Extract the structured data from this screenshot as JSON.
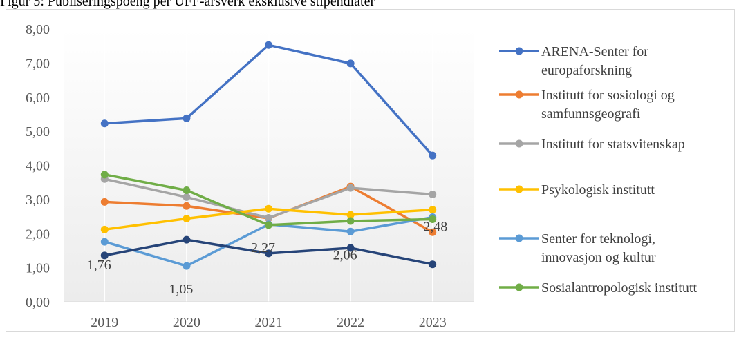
{
  "figure": {
    "title": "Figur 5: Publiseringspoeng per UFF-årsverk eksklusive stipendiater"
  },
  "chart_data": {
    "type": "line",
    "title": "",
    "xlabel": "",
    "ylabel": "",
    "categories": [
      "2019",
      "2020",
      "2021",
      "2022",
      "2023"
    ],
    "ylim": [
      0,
      8
    ],
    "yticks": [
      0,
      1,
      2,
      3,
      4,
      5,
      6,
      7,
      8
    ],
    "ytick_labels": [
      "0,00",
      "1,00",
      "2,00",
      "3,00",
      "4,00",
      "5,00",
      "6,00",
      "7,00",
      "8,00"
    ],
    "grid": "vertical",
    "legend_position": "right",
    "series": [
      {
        "name": "ARENA-Senter for europaforskning",
        "legend_lines": [
          "ARENA-Senter for",
          "europaforskning"
        ],
        "color": "#4472c4",
        "values": [
          5.23,
          5.38,
          7.53,
          6.99,
          4.29
        ],
        "in_legend": true
      },
      {
        "name": "Institutt for sosiologi og samfunnsgeografi",
        "legend_lines": [
          "Institutt for sosiologi og",
          "samfunnsgeografi"
        ],
        "color": "#ed7d31",
        "values": [
          2.93,
          2.81,
          2.45,
          3.38,
          2.04
        ],
        "in_legend": true
      },
      {
        "name": "Institutt for statsvitenskap",
        "legend_lines": [
          "Institutt for statsvitenskap"
        ],
        "color": "#a5a5a5",
        "values": [
          3.6,
          3.07,
          2.46,
          3.34,
          3.15
        ],
        "in_legend": true
      },
      {
        "name": "Psykologisk institutt",
        "legend_lines": [
          "Psykologisk institutt"
        ],
        "color": "#ffc000",
        "values": [
          2.12,
          2.44,
          2.73,
          2.55,
          2.7
        ],
        "in_legend": true
      },
      {
        "name": "Senter for teknologi, innovasjon og kultur",
        "legend_lines": [
          "Senter for teknologi,",
          "innovasjon og kultur"
        ],
        "color": "#5b9bd5",
        "values": [
          1.76,
          1.05,
          2.27,
          2.06,
          2.48
        ],
        "in_legend": true,
        "data_labels": [
          "1,76",
          "1,05",
          "2,27",
          "2,06",
          "2,48"
        ]
      },
      {
        "name": "Sosialantropologisk institutt",
        "legend_lines": [
          "Sosialantropologisk institutt"
        ],
        "color": "#70ad47",
        "values": [
          3.73,
          3.27,
          2.25,
          2.37,
          2.42
        ],
        "in_legend": true
      },
      {
        "name": "",
        "legend_lines": [],
        "color": "#264478",
        "values": [
          1.36,
          1.82,
          1.42,
          1.58,
          1.1
        ],
        "in_legend": false
      }
    ]
  }
}
